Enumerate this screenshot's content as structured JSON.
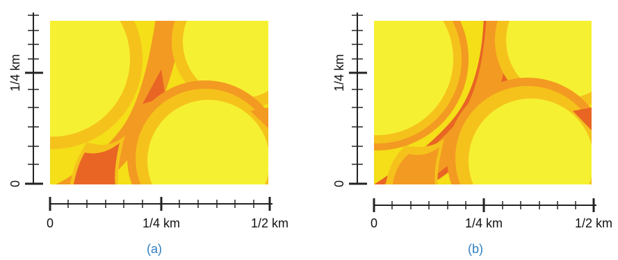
{
  "panels": [
    {
      "id": "a",
      "caption": "(a)",
      "y_axis": {
        "tick_labels": [
          "0",
          "1/4 km"
        ]
      },
      "x_axis": {
        "tick_labels": [
          "0",
          "1/4 km",
          "1/2 km"
        ]
      }
    },
    {
      "id": "b",
      "caption": "(b)",
      "y_axis": {
        "tick_labels": [
          "0",
          "1/4 km"
        ]
      },
      "x_axis": {
        "tick_labels": [
          "0",
          "1/4 km",
          "1/2 km"
        ]
      }
    }
  ],
  "colors": {
    "yellow_light": "#f6f032",
    "yellow": "#f4df18",
    "amber": "#f5c21c",
    "orange": "#f39a22",
    "red_orange": "#e86524",
    "caption": "#2f7fc1"
  }
}
